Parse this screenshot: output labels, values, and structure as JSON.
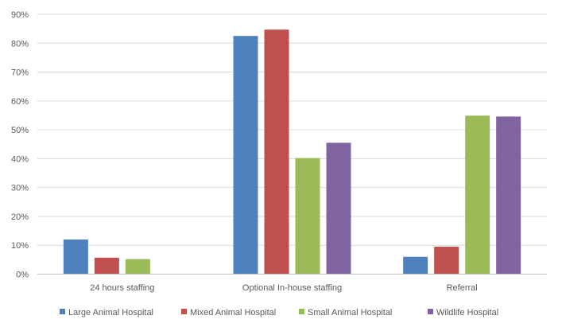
{
  "chart_data": {
    "type": "bar",
    "categories": [
      "24 hours staffing",
      "Optional In-house staffing",
      "Referral"
    ],
    "series": [
      {
        "name": "Large Animal Hospital",
        "color": "#4F81BD",
        "values": [
          12,
          82.5,
          6
        ]
      },
      {
        "name": "Mixed Animal Hospital",
        "color": "#C0504D",
        "values": [
          5.7,
          84.7,
          9.5
        ]
      },
      {
        "name": "Small Animal Hospital",
        "color": "#9BBB59",
        "values": [
          5.2,
          40.2,
          54.9
        ]
      },
      {
        "name": "Wildlife Hospital",
        "color": "#8064A2",
        "values": [
          0,
          45.5,
          54.6
        ]
      }
    ],
    "y_ticks": [
      "0%",
      "10%",
      "20%",
      "30%",
      "40%",
      "50%",
      "60%",
      "70%",
      "80%",
      "90%"
    ],
    "ylim": [
      0,
      90
    ],
    "y_unit": "%",
    "grid": true,
    "legend_position": "bottom",
    "title": "",
    "xlabel": "",
    "ylabel": ""
  }
}
